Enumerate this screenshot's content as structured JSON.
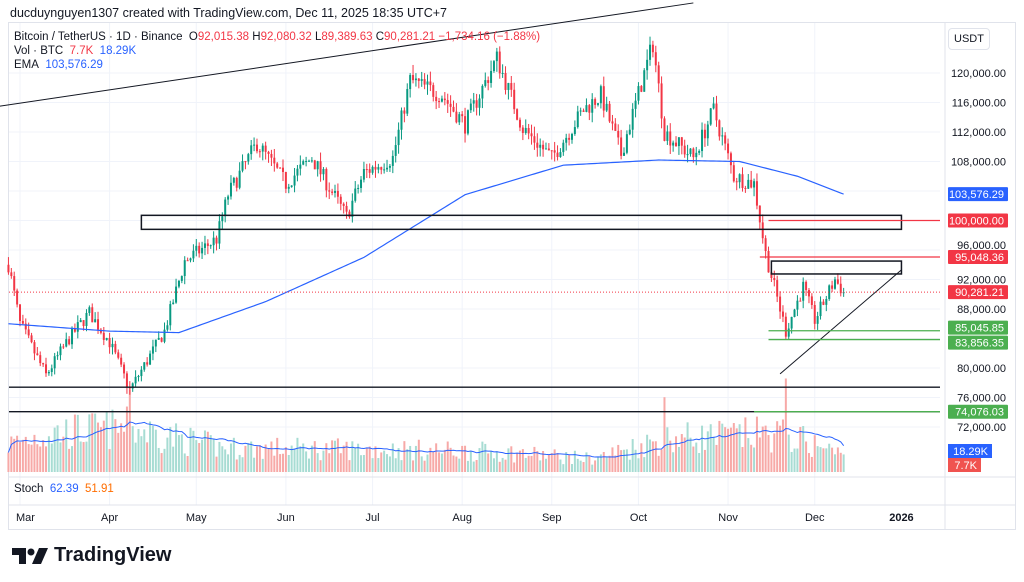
{
  "header": {
    "credit": "ducduynguyen1307 created with TradingView.com, Dec 11, 2025 18:35 UTC+7"
  },
  "legend": {
    "symbol": "Bitcoin / TetherUS · 1D · Binance",
    "open_label": "O",
    "open": "92,015.38",
    "high_label": "H",
    "high": "92,080.32",
    "low_label": "L",
    "low": "89,389.63",
    "close_label": "C",
    "close": "90,281.21",
    "change": "−1,734.16 (−1.88%)",
    "vol_label": "Vol · BTC",
    "vol_value": "7.7K",
    "vol_ma": "18.29K",
    "ema_label": "EMA",
    "ema_value": "103,576.29",
    "stoch_label": "Stoch",
    "stoch_k": "62.39",
    "stoch_d": "51.91"
  },
  "currency": "USDT",
  "brand": "TradingView",
  "colors": {
    "up": "#089981",
    "down": "#f23645",
    "ema": "#2962ff",
    "green_level": "#4caf50",
    "red_level": "#f23645"
  },
  "chart_data": {
    "type": "candlestick",
    "title": "Bitcoin / TetherUS · 1D · Binance",
    "x_ticks": [
      "Mar",
      "Apr",
      "May",
      "Jun",
      "Jul",
      "Aug",
      "Sep",
      "Oct",
      "Nov",
      "Dec",
      "2026"
    ],
    "y_ticks": [
      "120,000.00",
      "116,000.00",
      "112,000.00",
      "108,000.00",
      "96,000.00",
      "92,000.00",
      "88,000.00",
      "80,000.00",
      "76,000.00",
      "72,000.00"
    ],
    "ylim": [
      68000,
      126000
    ],
    "price_path": [
      [
        "02-25",
        94000
      ],
      [
        "03-01",
        86000
      ],
      [
        "03-10",
        79000
      ],
      [
        "03-18",
        84000
      ],
      [
        "03-25",
        87500
      ],
      [
        "04-01",
        83500
      ],
      [
        "04-08",
        77000
      ],
      [
        "04-20",
        85000
      ],
      [
        "04-27",
        94500
      ],
      [
        "05-08",
        97500
      ],
      [
        "05-12",
        103500
      ],
      [
        "05-22",
        110500
      ],
      [
        "06-01",
        105000
      ],
      [
        "06-10",
        108500
      ],
      [
        "06-22",
        100500
      ],
      [
        "06-28",
        106500
      ],
      [
        "07-08",
        108500
      ],
      [
        "07-14",
        119000
      ],
      [
        "07-25",
        117000
      ],
      [
        "08-02",
        113000
      ],
      [
        "08-13",
        122000
      ],
      [
        "08-22",
        112500
      ],
      [
        "09-01",
        108500
      ],
      [
        "09-12",
        115000
      ],
      [
        "09-18",
        117000
      ],
      [
        "09-25",
        109000
      ],
      [
        "10-06",
        124000
      ],
      [
        "10-10",
        112000
      ],
      [
        "10-20",
        108500
      ],
      [
        "10-27",
        115000
      ],
      [
        "11-03",
        106000
      ],
      [
        "11-10",
        105000
      ],
      [
        "11-14",
        95500
      ],
      [
        "11-21",
        85000
      ],
      [
        "11-27",
        91000
      ],
      [
        "12-01",
        86500
      ],
      [
        "12-08",
        92000
      ],
      [
        "12-11",
        90281.21
      ]
    ],
    "ema_path": [
      [
        "02-25",
        86000
      ],
      [
        "04-01",
        85000
      ],
      [
        "04-25",
        84800
      ],
      [
        "05-25",
        89000
      ],
      [
        "06-28",
        95000
      ],
      [
        "08-02",
        103500
      ],
      [
        "09-05",
        107500
      ],
      [
        "10-08",
        108200
      ],
      [
        "11-05",
        108000
      ],
      [
        "11-25",
        106000
      ],
      [
        "12-11",
        103576.29
      ]
    ],
    "ema_period_label": "EMA",
    "volume_path": [
      [
        "02-25",
        25
      ],
      [
        "03-10",
        35
      ],
      [
        "04-08",
        40
      ],
      [
        "05-10",
        22
      ],
      [
        "07-14",
        20
      ],
      [
        "08-15",
        18
      ],
      [
        "09-15",
        12
      ],
      [
        "10-10",
        30
      ],
      [
        "11-20",
        35
      ],
      [
        "12-11",
        15
      ]
    ],
    "volume_spikes": [
      [
        "04-08",
        75
      ],
      [
        "10-10",
        68
      ],
      [
        "11-21",
        85
      ]
    ],
    "volume_unit": "K BTC",
    "levels": [
      {
        "label": "100,000.00",
        "price": 100000,
        "color": "red",
        "from": "11-15"
      },
      {
        "label": "95,048.36",
        "price": 95048.36,
        "color": "red",
        "from": "11-12"
      },
      {
        "label": "85,045.85",
        "price": 85045.85,
        "color": "green",
        "from": "11-15"
      },
      {
        "label": "83,856.35",
        "price": 83856.35,
        "color": "green",
        "from": "11-15"
      },
      {
        "label": "74,076.03",
        "price": 74076.03,
        "color": "green",
        "from": "11-10"
      }
    ],
    "horizontal_lines": [
      77400,
      74076.03
    ],
    "zones": [
      {
        "from": "04-12",
        "to": "12-31",
        "low": 98800,
        "high": 100700
      },
      {
        "from": "11-16",
        "to": "12-31",
        "low": 92750,
        "high": 94500
      }
    ],
    "trendlines": [
      [
        [
          "02-22",
          115500
        ],
        [
          "10-20",
          129500
        ]
      ],
      [
        [
          "11-19",
          79200
        ],
        [
          "12-31",
          93300
        ]
      ]
    ],
    "last_price": {
      "label": "90,281.21",
      "value": 90281.21
    },
    "ema_tag": "103,576.29",
    "vol_tags": {
      "ma": "18.29K",
      "vol": "7.7K"
    }
  }
}
